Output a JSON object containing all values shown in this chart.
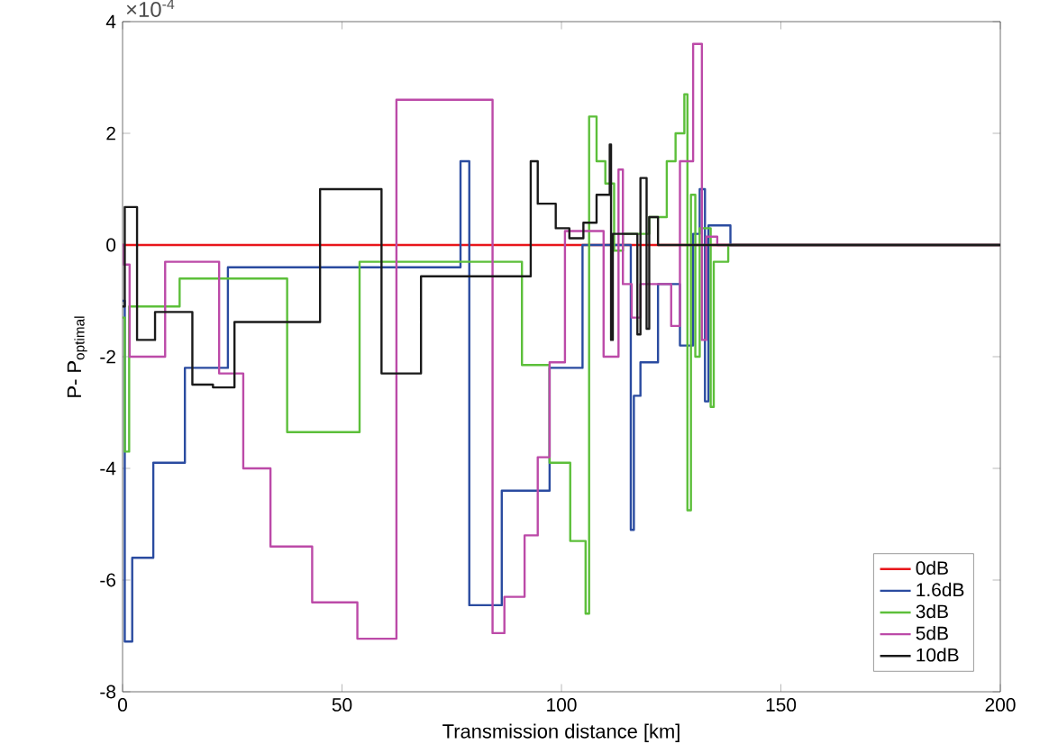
{
  "chart_data": {
    "type": "step",
    "xlabel": "Transmission distance [km]",
    "ylabel": "P- P$_{optimal}$",
    "annotations": [
      "×10$^{-4}$"
    ],
    "xlim": [
      0,
      200
    ],
    "xticks": [
      0,
      50,
      100,
      150,
      200
    ],
    "ylim": [
      -8,
      4
    ],
    "yticks": [
      -8,
      -6,
      -4,
      -2,
      0,
      2,
      4
    ],
    "grid": false,
    "legend": "bottom right",
    "marker": "none",
    "line_style": "solid",
    "series": [
      {
        "name": "0dB",
        "color": "#e8161b",
        "x": [
          0,
          200
        ],
        "values": [
          0,
          0
        ]
      },
      {
        "name": "1.6dB",
        "color": "#2a4ba0",
        "x": [
          0,
          0.5,
          2.2,
          7,
          14.2,
          24,
          77,
          79,
          86.4,
          97.3,
          104.8,
          115.8,
          116.5,
          118,
          122,
          127,
          130,
          131.5,
          132.7,
          133.5,
          138.5,
          200
        ],
        "values": [
          -1,
          -7.1,
          -5.6,
          -3.9,
          -2.2,
          -0.4,
          1.5,
          -6.45,
          -4.4,
          -2.2,
          0,
          -5.1,
          -2.7,
          -2.1,
          -0.7,
          -1.8,
          0.2,
          1.0,
          -2.8,
          0.35,
          0,
          0
        ]
      },
      {
        "name": "3dB",
        "color": "#5cbf3a",
        "x": [
          0,
          0.5,
          1.5,
          13,
          37.5,
          54,
          91,
          97.3,
          102,
          105.5,
          106.3,
          108,
          110,
          112,
          114,
          120,
          124,
          126,
          128,
          128.7,
          129.5,
          130.5,
          131.5,
          134,
          134.7,
          138,
          200
        ],
        "values": [
          -1.3,
          -3.7,
          -1.1,
          -0.6,
          -3.35,
          -0.3,
          -2.15,
          -3.9,
          -5.3,
          -6.6,
          2.3,
          1.5,
          1.1,
          -0.1,
          0.2,
          0.5,
          1.5,
          2.0,
          2.7,
          -4.75,
          0.9,
          -2.0,
          0.3,
          -2.9,
          -0.3,
          0,
          0
        ]
      },
      {
        "name": "5dB",
        "color": "#bc4aa8",
        "x": [
          0,
          0.3,
          1.6,
          9.7,
          22,
          27.5,
          33.7,
          43.2,
          53.5,
          62.4,
          84.3,
          87,
          91.6,
          94.6,
          97.3,
          100.8,
          109.6,
          113,
          114,
          116,
          118,
          125,
          127,
          130,
          132,
          133,
          135.5,
          200
        ],
        "values": [
          0,
          -0.35,
          -2.0,
          -0.3,
          -2.3,
          -4.0,
          -5.4,
          -6.4,
          -7.05,
          2.6,
          -6.95,
          -6.3,
          -5.2,
          -3.8,
          -2.1,
          0.25,
          -2.0,
          1.35,
          -0.7,
          -1.3,
          -0.7,
          -1.45,
          1.5,
          3.6,
          -1.7,
          0.15,
          0,
          0
        ]
      },
      {
        "name": "10dB",
        "color": "#1a1a1a",
        "x": [
          0,
          0.5,
          3.3,
          7.4,
          15.9,
          20.6,
          25.5,
          45,
          59,
          68,
          93,
          94.6,
          98.7,
          101.8,
          105,
          108,
          111,
          111.3,
          111.7,
          117.3,
          118,
          119.4,
          120,
          122,
          200
        ],
        "values": [
          -1.1,
          0.68,
          -1.7,
          -1.2,
          -2.5,
          -2.55,
          -1.38,
          1.0,
          -2.3,
          -0.56,
          1.5,
          0.74,
          0.3,
          0.12,
          0.4,
          0.9,
          1.8,
          -1.7,
          0.2,
          -1.6,
          1.2,
          -1.5,
          0.5,
          0,
          0
        ]
      }
    ]
  }
}
